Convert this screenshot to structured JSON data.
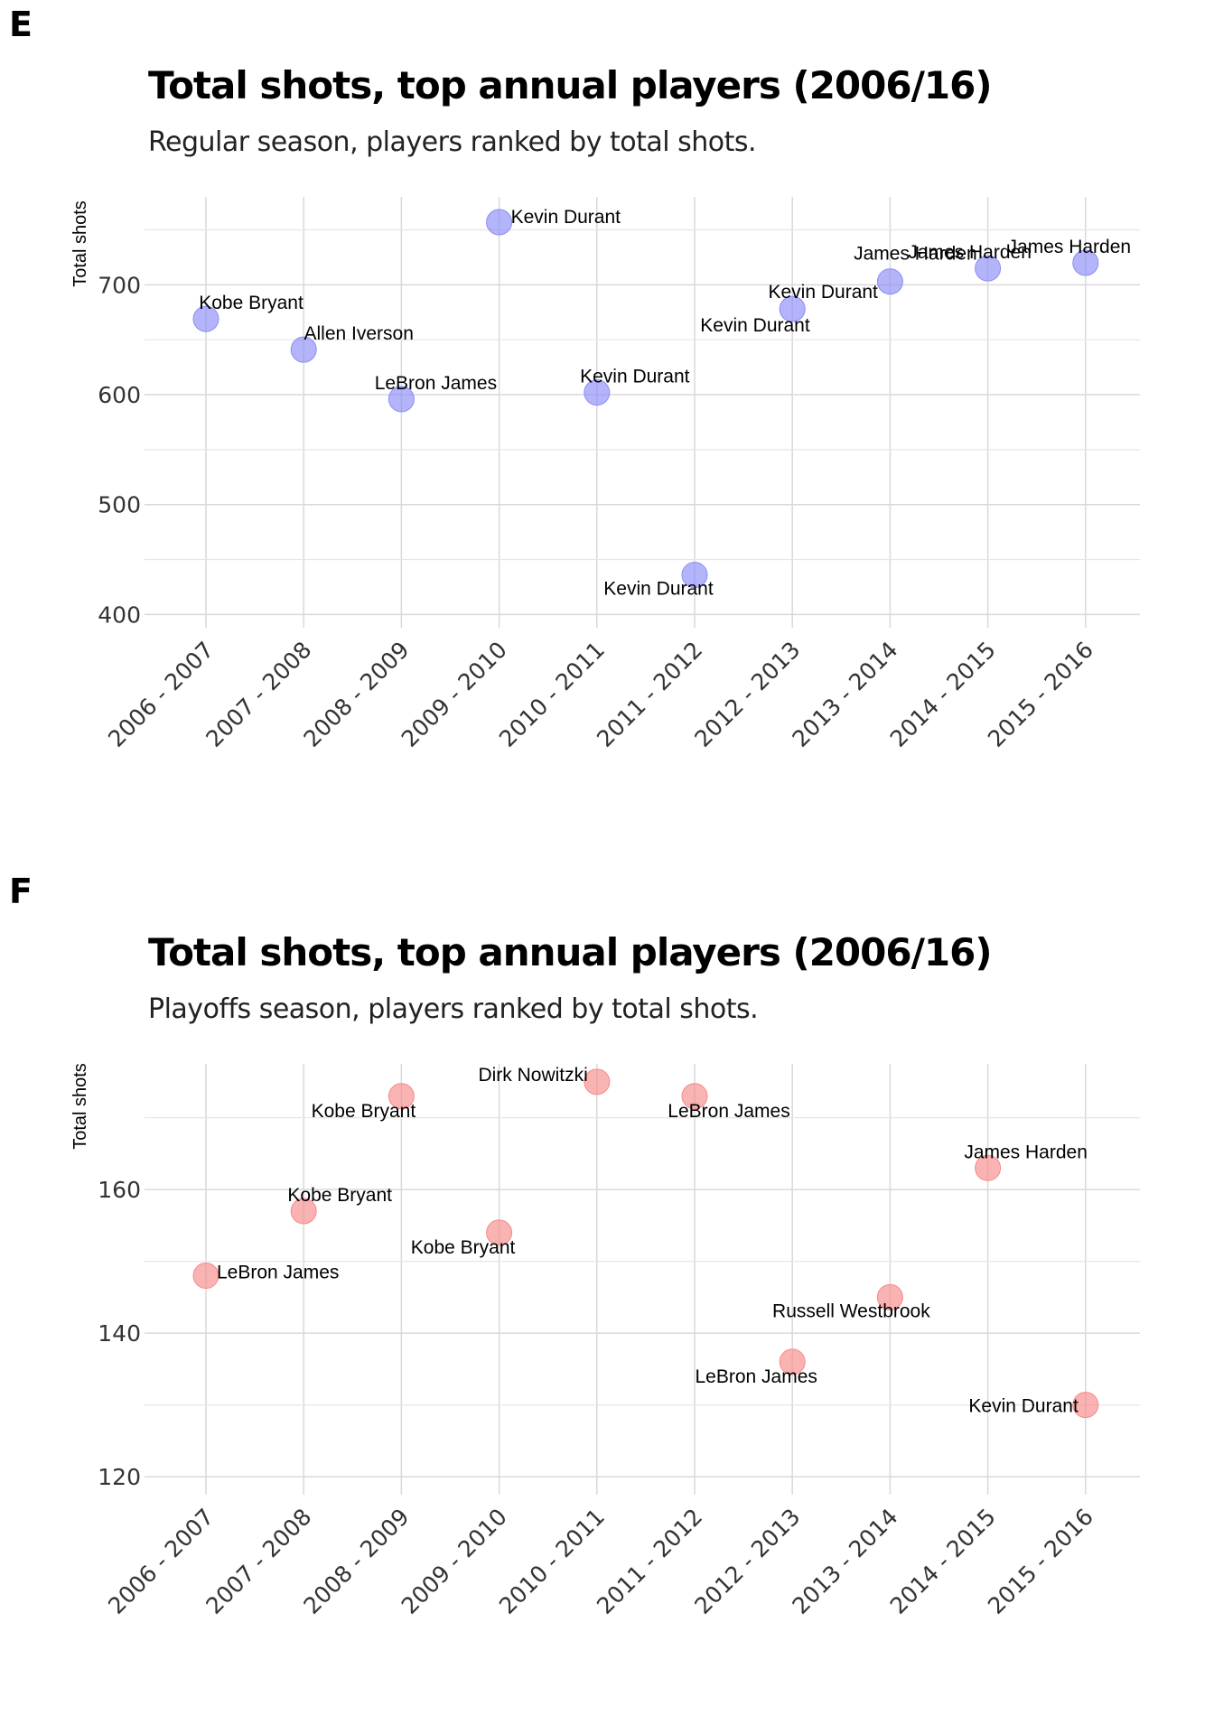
{
  "panels": [
    {
      "letter": "E",
      "title": "Total shots, top annual players (2006/16)",
      "subtitle": "Regular season, players ranked by total shots."
    },
    {
      "letter": "F",
      "title": "Total shots, top annual players (2006/16)",
      "subtitle": "Playoffs season, players ranked by total shots."
    }
  ],
  "chart_data": [
    {
      "type": "scatter",
      "title": "Total shots, top annual players (2006/16)",
      "subtitle": "Regular season, players ranked by total shots.",
      "xlabel": "",
      "ylabel": "Total shots",
      "categories": [
        "2006 - 2007",
        "2007 - 2008",
        "2008 - 2009",
        "2009 - 2010",
        "2010 - 2011",
        "2011 - 2012",
        "2012 - 2013",
        "2013 - 2014",
        "2014 - 2015",
        "2015 - 2016"
      ],
      "values": [
        669,
        641,
        596,
        757,
        602,
        436,
        678,
        703,
        715,
        720
      ],
      "labels": [
        "Kobe Bryant",
        "Allen Iverson",
        "LeBron James",
        "Kevin Durant",
        "Kevin Durant",
        "Kevin Durant",
        "Kevin Durant",
        "James Harden",
        "James Harden",
        "James Harden"
      ],
      "extra_labels": [
        "Kevin Durant"
      ],
      "ylim": [
        388,
        780
      ],
      "yticks": [
        400,
        500,
        600,
        700
      ],
      "point_color": "#8c8cf7",
      "grid": true
    },
    {
      "type": "scatter",
      "title": "Total shots, top annual players (2006/16)",
      "subtitle": "Playoffs season, players ranked by total shots.",
      "xlabel": "",
      "ylabel": "Total shots",
      "categories": [
        "2006 - 2007",
        "2007 - 2008",
        "2008 - 2009",
        "2009 - 2010",
        "2010 - 2011",
        "2011 - 2012",
        "2012 - 2013",
        "2013 - 2014",
        "2014 - 2015",
        "2015 - 2016"
      ],
      "values": [
        148,
        157,
        173,
        154,
        175,
        173,
        136,
        145,
        163,
        130
      ],
      "labels": [
        "LeBron James",
        "Kobe Bryant",
        "Kobe Bryant",
        "Kobe Bryant",
        "Dirk Nowitzki",
        "LeBron James",
        "LeBron James",
        "Russell Westbrook",
        "James Harden",
        "Kevin Durant"
      ],
      "ylim": [
        117.5,
        177.5
      ],
      "yticks": [
        120,
        140,
        160
      ],
      "point_color": "#f88a8a",
      "grid": true
    }
  ]
}
